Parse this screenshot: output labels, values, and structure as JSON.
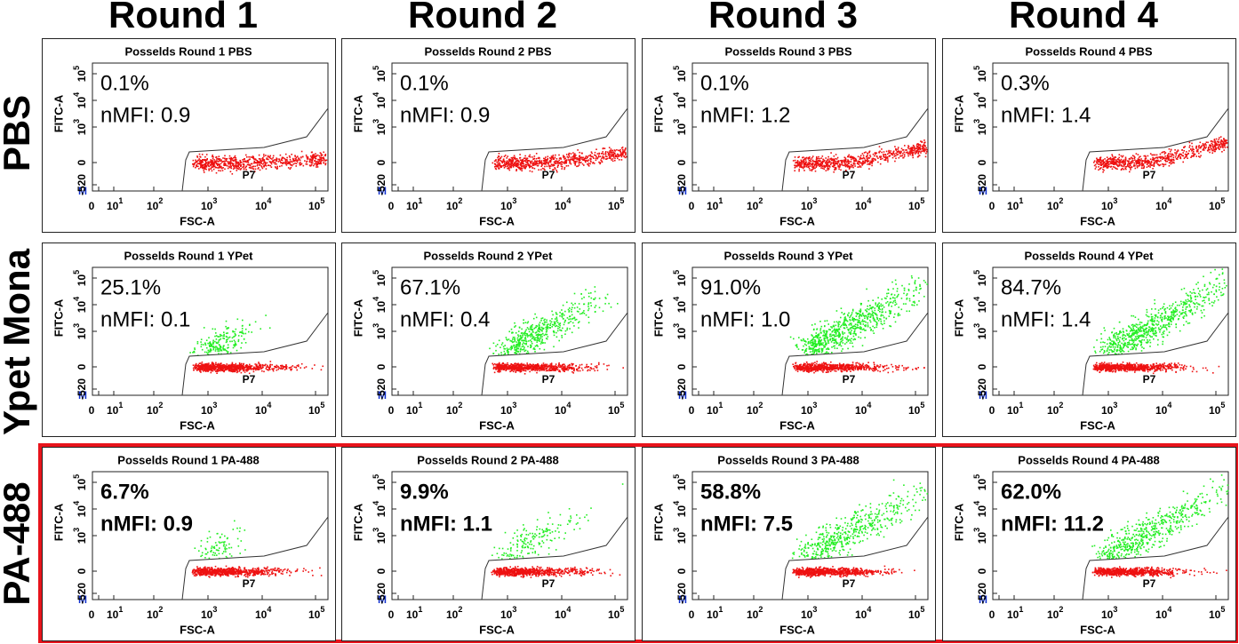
{
  "columns": [
    "Round 1",
    "Round 2",
    "Round 3",
    "Round 4"
  ],
  "rows": [
    {
      "label": "PBS",
      "panels": [
        {
          "title": "Posselds Round 1 PBS",
          "percent": "0.1%",
          "nmfi": "nMFI: 0.9"
        },
        {
          "title": "Posselds Round 2 PBS",
          "percent": "0.1%",
          "nmfi": "nMFI: 0.9"
        },
        {
          "title": "Posselds Round 3 PBS",
          "percent": "0.1%",
          "nmfi": "nMFI: 1.2"
        },
        {
          "title": "Posselds Round 4 PBS",
          "percent": "0.3%",
          "nmfi": "nMFI: 1.4"
        }
      ]
    },
    {
      "label": "Ypet Mona",
      "panels": [
        {
          "title": "Posselds Round 1 YPet",
          "percent": "25.1%",
          "nmfi": "nMFI: 0.1"
        },
        {
          "title": "Posselds Round 2 YPet",
          "percent": "67.1%",
          "nmfi": "nMFI: 0.4"
        },
        {
          "title": "Posselds Round 3 YPet",
          "percent": "91.0%",
          "nmfi": "nMFI: 1.0"
        },
        {
          "title": "Posselds Round 4 YPet",
          "percent": "84.7%",
          "nmfi": "nMFI: 1.4"
        }
      ]
    },
    {
      "label": "PA-488",
      "panels": [
        {
          "title": "Posselds Round 1 PA-488",
          "percent": "6.7%",
          "nmfi": "nMFI: 0.9"
        },
        {
          "title": "Posselds Round 2 PA-488",
          "percent": "9.9%",
          "nmfi": "nMFI: 1.1"
        },
        {
          "title": "Posselds Round 3 PA-488",
          "percent": "58.8%",
          "nmfi": "nMFI: 7.5"
        },
        {
          "title": "Posselds Round 4 PA-488",
          "percent": "62.0%",
          "nmfi": "nMFI: 11.2"
        }
      ]
    }
  ],
  "axes": {
    "x_label": "FSC-A",
    "y_label": "FITC-A",
    "gate": "P7",
    "marker": "M",
    "x_ticks": [
      {
        "label": "0"
      },
      {
        "label": "10",
        "sup": "1"
      },
      {
        "label": "10",
        "sup": "2"
      },
      {
        "label": "10",
        "sup": "3"
      },
      {
        "label": "10",
        "sup": "4"
      },
      {
        "label": "10",
        "sup": "5"
      }
    ],
    "y_ticks": [
      {
        "label": "-520"
      },
      {
        "label": "0"
      },
      {
        "label": "10",
        "sup": "3"
      },
      {
        "label": "10",
        "sup": "4"
      },
      {
        "label": "10",
        "sup": "5"
      }
    ]
  }
}
